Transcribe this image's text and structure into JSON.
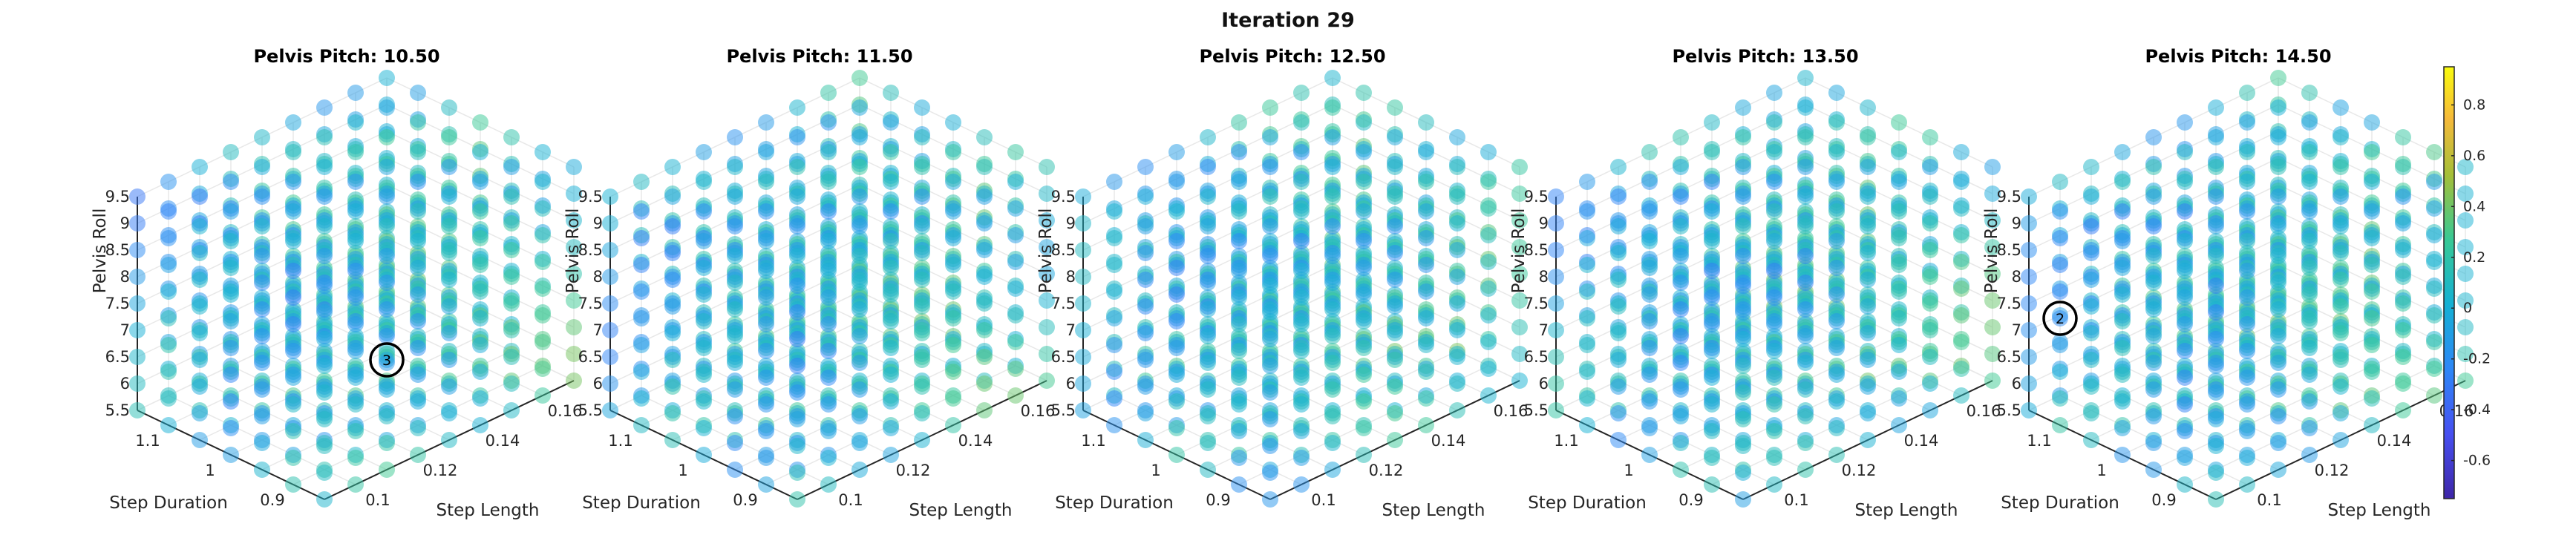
{
  "title": "Iteration 29",
  "chart_data": {
    "type": "scatter",
    "subplots": [
      {
        "title": "Pelvis Pitch: 10.50",
        "pelvis_pitch": 10.5,
        "marker": {
          "label": "3",
          "step_length": 0.12,
          "step_duration": 0.9,
          "pelvis_roll": 7.0
        }
      },
      {
        "title": "Pelvis Pitch: 11.50",
        "pelvis_pitch": 11.5,
        "marker": null
      },
      {
        "title": "Pelvis Pitch: 12.50",
        "pelvis_pitch": 12.5,
        "marker": null
      },
      {
        "title": "Pelvis Pitch: 13.50",
        "pelvis_pitch": 13.5,
        "marker": null
      },
      {
        "title": "Pelvis Pitch: 14.50",
        "pelvis_pitch": 14.5,
        "marker": {
          "label": "2",
          "step_length": 0.09,
          "step_duration": 1.1,
          "pelvis_roll": 7.5
        }
      }
    ],
    "axes": {
      "x": {
        "label": "Step Length",
        "ticks": [
          "0.1",
          "0.12",
          "0.14",
          "0.16"
        ],
        "range": [
          0.09,
          0.17
        ],
        "grid_values": [
          0.09,
          0.1,
          0.11,
          0.12,
          0.13,
          0.14,
          0.15,
          0.16,
          0.17
        ]
      },
      "y": {
        "label": "Step Duration",
        "ticks": [
          "0.9",
          "1",
          "1.1"
        ],
        "range": [
          0.85,
          1.15
        ],
        "grid_values": [
          0.85,
          0.9,
          0.95,
          1.0,
          1.05,
          1.1,
          1.15
        ]
      },
      "z": {
        "label": "Pelvis Roll",
        "ticks": [
          "5.5",
          "6",
          "6.5",
          "7",
          "7.5",
          "8",
          "8.5",
          "9",
          "9.5"
        ],
        "range": [
          5.5,
          9.5
        ],
        "grid_values": [
          5.5,
          6.0,
          6.5,
          7.0,
          7.5,
          8.0,
          8.5,
          9.0,
          9.5
        ]
      }
    },
    "colorbar": {
      "ticks": [
        "0.8",
        "0.6",
        "0.4",
        "0.2",
        "0",
        "-0.2",
        "-0.4",
        "-0.6"
      ],
      "range": [
        -0.75,
        0.95
      ],
      "colormap": "parula"
    },
    "grid": true
  }
}
